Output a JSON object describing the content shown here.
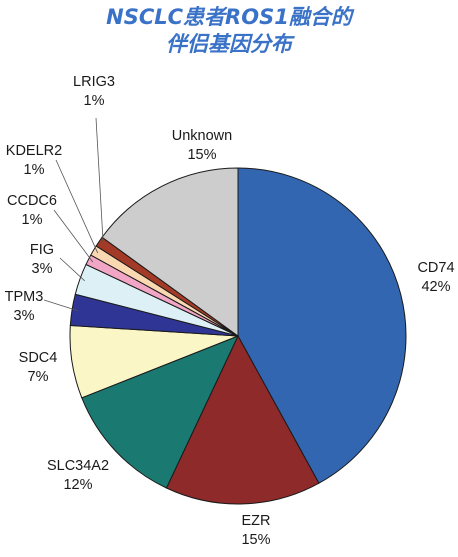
{
  "title_lines": [
    "NSCLC患者ROS1融合的",
    "伴侣基因分布"
  ],
  "chart_data": {
    "type": "pie",
    "title": "NSCLC患者ROS1融合的伴侣基因分布",
    "slices": [
      {
        "label": "CD74",
        "value": 42,
        "value_label": "42%",
        "color": "#3366b0"
      },
      {
        "label": "EZR",
        "value": 15,
        "value_label": "15%",
        "color": "#8e2a2a"
      },
      {
        "label": "SLC34A2",
        "value": 12,
        "value_label": "12%",
        "color": "#1a7a72"
      },
      {
        "label": "SDC4",
        "value": 7,
        "value_label": "7%",
        "color": "#fbf6c6"
      },
      {
        "label": "TPM3",
        "value": 3,
        "value_label": "3%",
        "color": "#2e3594"
      },
      {
        "label": "FIG",
        "value": 3,
        "value_label": "3%",
        "color": "#dcf0f6"
      },
      {
        "label": "CCDC6",
        "value": 1,
        "value_label": "1%",
        "color": "#f2a6c6"
      },
      {
        "label": "KDELR2",
        "value": 1,
        "value_label": "1%",
        "color": "#fad8b2"
      },
      {
        "label": "LRIG3",
        "value": 1,
        "value_label": "1%",
        "color": "#a33a28"
      },
      {
        "label": "Unknown",
        "value": 15,
        "value_label": "15%",
        "color": "#cdcdcd"
      }
    ]
  }
}
